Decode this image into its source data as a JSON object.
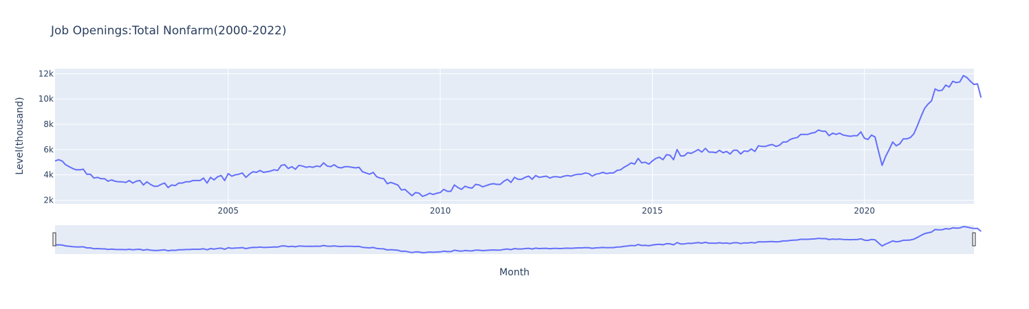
{
  "chart_data": {
    "type": "line",
    "title": "Job Openings:Total Nonfarm(2000-2022)",
    "xlabel": "Month",
    "ylabel": "Level(thousand)",
    "x_range": [
      "2000-12",
      "2022-08"
    ],
    "ylim": [
      1700,
      12400
    ],
    "x_ticks": [
      "2005",
      "2010",
      "2015",
      "2020"
    ],
    "y_ticks": [
      "2k",
      "4k",
      "6k",
      "8k",
      "10k",
      "12k"
    ],
    "y_tick_values": [
      2000,
      4000,
      6000,
      8000,
      10000,
      12000
    ],
    "grid": true,
    "range_slider": true,
    "colors": {
      "line": "#636efa",
      "plot_bg": "#e5ecf6",
      "grid": "#ffffff",
      "text": "#2a3f5f"
    },
    "series": [
      {
        "x_start": "2000-12",
        "frequency": "monthly",
        "values": [
          5100,
          5200,
          5100,
          4800,
          4650,
          4500,
          4400,
          4400,
          4450,
          4050,
          4050,
          3750,
          3800,
          3700,
          3700,
          3500,
          3600,
          3500,
          3450,
          3450,
          3400,
          3550,
          3350,
          3500,
          3550,
          3200,
          3450,
          3250,
          3100,
          3100,
          3250,
          3350,
          3000,
          3200,
          3150,
          3350,
          3350,
          3450,
          3450,
          3550,
          3550,
          3550,
          3750,
          3350,
          3800,
          3600,
          3850,
          3950,
          3550,
          4100,
          3900,
          4000,
          4050,
          4150,
          3800,
          4050,
          4250,
          4200,
          4350,
          4200,
          4250,
          4300,
          4400,
          4350,
          4750,
          4800,
          4500,
          4650,
          4450,
          4750,
          4700,
          4600,
          4650,
          4600,
          4700,
          4650,
          4950,
          4700,
          4650,
          4800,
          4600,
          4550,
          4650,
          4650,
          4600,
          4550,
          4600,
          4250,
          4150,
          4050,
          4200,
          3850,
          3750,
          3700,
          3300,
          3400,
          3300,
          3200,
          2800,
          2850,
          2600,
          2350,
          2600,
          2550,
          2300,
          2400,
          2550,
          2450,
          2550,
          2600,
          2850,
          2700,
          2700,
          3200,
          3000,
          2850,
          3100,
          3000,
          2950,
          3250,
          3200,
          3050,
          3150,
          3250,
          3300,
          3250,
          3250,
          3500,
          3650,
          3400,
          3800,
          3650,
          3650,
          3800,
          3900,
          3650,
          3950,
          3800,
          3850,
          3900,
          3750,
          3850,
          3850,
          3800,
          3900,
          3950,
          3900,
          4000,
          4050,
          4050,
          4150,
          4100,
          3900,
          4050,
          4100,
          4200,
          4100,
          4150,
          4150,
          4350,
          4400,
          4600,
          4750,
          4950,
          4850,
          5300,
          4950,
          5000,
          4850,
          5100,
          5300,
          5400,
          5200,
          5600,
          5550,
          5200,
          6000,
          5500,
          5500,
          5750,
          5700,
          5850,
          6000,
          5800,
          6100,
          5800,
          5800,
          5750,
          5950,
          5750,
          5850,
          5650,
          5950,
          5950,
          5650,
          5900,
          5850,
          6050,
          5850,
          6300,
          6250,
          6250,
          6350,
          6400,
          6250,
          6350,
          6600,
          6600,
          6800,
          6900,
          6950,
          7200,
          7200,
          7200,
          7300,
          7350,
          7550,
          7450,
          7450,
          7100,
          7300,
          7200,
          7300,
          7150,
          7100,
          7050,
          7100,
          7100,
          7400,
          6900,
          6800,
          7150,
          7000,
          5850,
          4750,
          5450,
          6000,
          6600,
          6300,
          6450,
          6850,
          6850,
          6950,
          7250,
          7900,
          8600,
          9250,
          9600,
          9850,
          10800,
          10650,
          10700,
          11100,
          10950,
          11400,
          11300,
          11350,
          11850,
          11700,
          11400,
          11150,
          11200,
          10100
        ]
      }
    ]
  }
}
